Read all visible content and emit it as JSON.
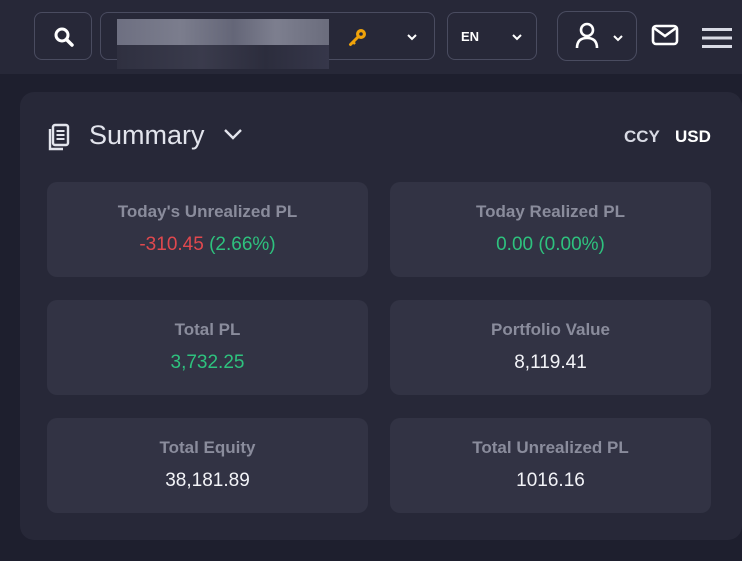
{
  "topbar": {
    "search_icon": "search-icon",
    "account_icon": "key-icon",
    "language": "EN",
    "user_icon": "user-icon",
    "mail_icon": "mail-icon",
    "menu_icon": "hamburger-menu-icon"
  },
  "summary": {
    "title": "Summary",
    "ccy_label": "CCY",
    "ccy_value": "USD",
    "cards": [
      {
        "label": "Today's Unrealized PL",
        "value": "-310.45",
        "value_color": "#e0484e",
        "sub_value": "(2.66%)",
        "sub_color": "#2ec27e"
      },
      {
        "label": "Today Realized PL",
        "value": "0.00 (0.00%)",
        "value_color": "#2ec27e"
      },
      {
        "label": "Total PL",
        "value": "3,732.25",
        "value_color": "#2ec27e"
      },
      {
        "label": "Portfolio Value",
        "value": "8,119.41",
        "value_color": "#f2f3f7"
      },
      {
        "label": "Total Equity",
        "value": "38,181.89",
        "value_color": "#f2f3f7"
      },
      {
        "label": "Total Unrealized PL",
        "value": "1016.16",
        "value_color": "#f2f3f7"
      }
    ]
  },
  "colors": {
    "background": "#1e1f2e",
    "panel": "#272838",
    "card": "#323344",
    "positive": "#2ec27e",
    "negative": "#e0484e",
    "key_icon": "#f0a30a"
  }
}
